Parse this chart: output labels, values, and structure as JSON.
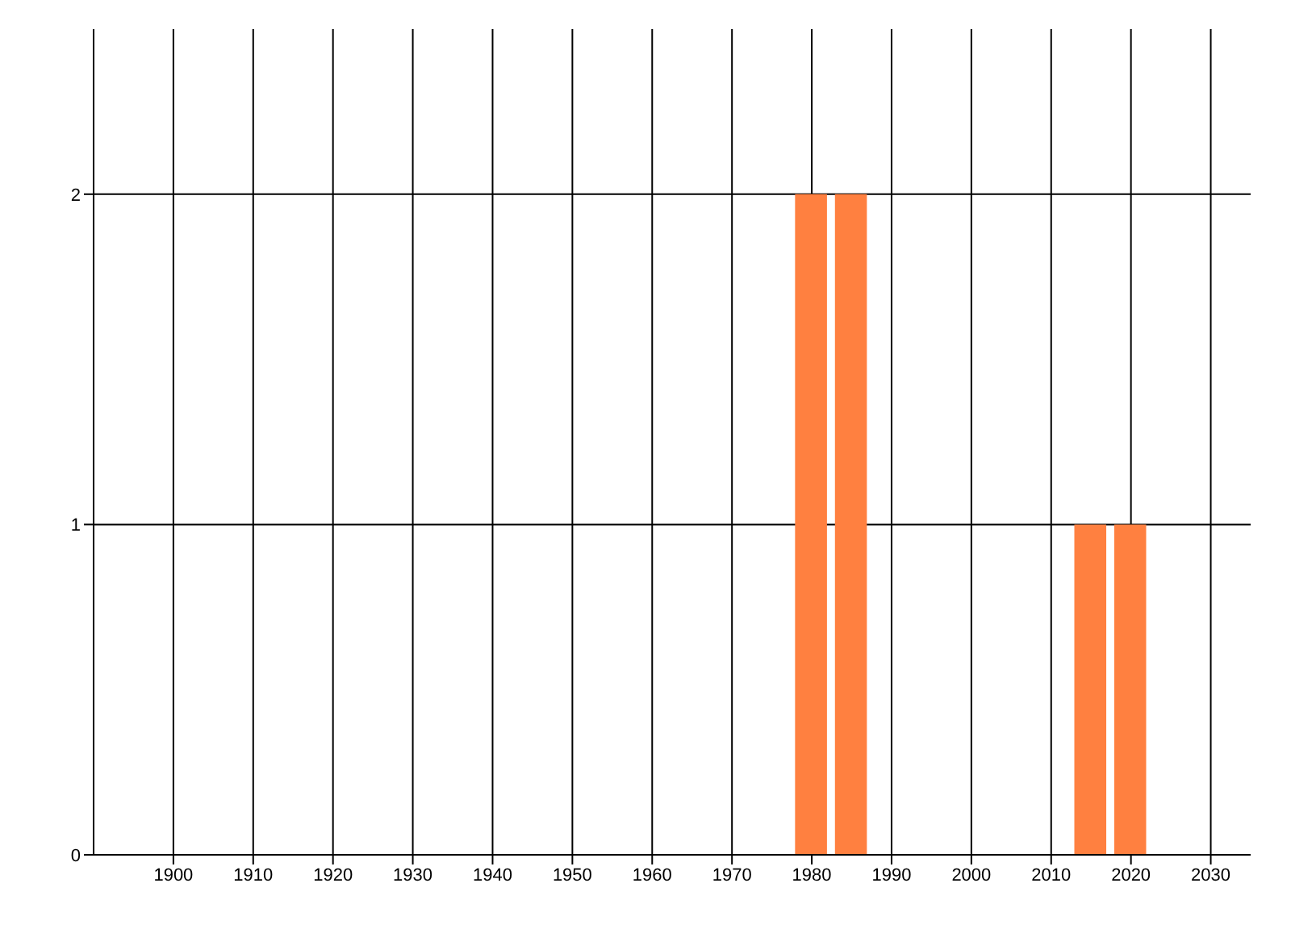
{
  "chart_data": {
    "type": "bar",
    "x": [
      1980,
      1985,
      2015,
      2020
    ],
    "values": [
      2,
      2,
      1,
      1
    ],
    "color": "#ff8040",
    "xlim": [
      1890,
      2035
    ],
    "xticks": [
      1900,
      1910,
      1920,
      1930,
      1940,
      1950,
      1960,
      1970,
      1980,
      1990,
      2000,
      2010,
      2020,
      2030
    ],
    "ylim": [
      0,
      2.5
    ],
    "yticks": [
      0,
      1,
      2
    ],
    "grid": true
  }
}
